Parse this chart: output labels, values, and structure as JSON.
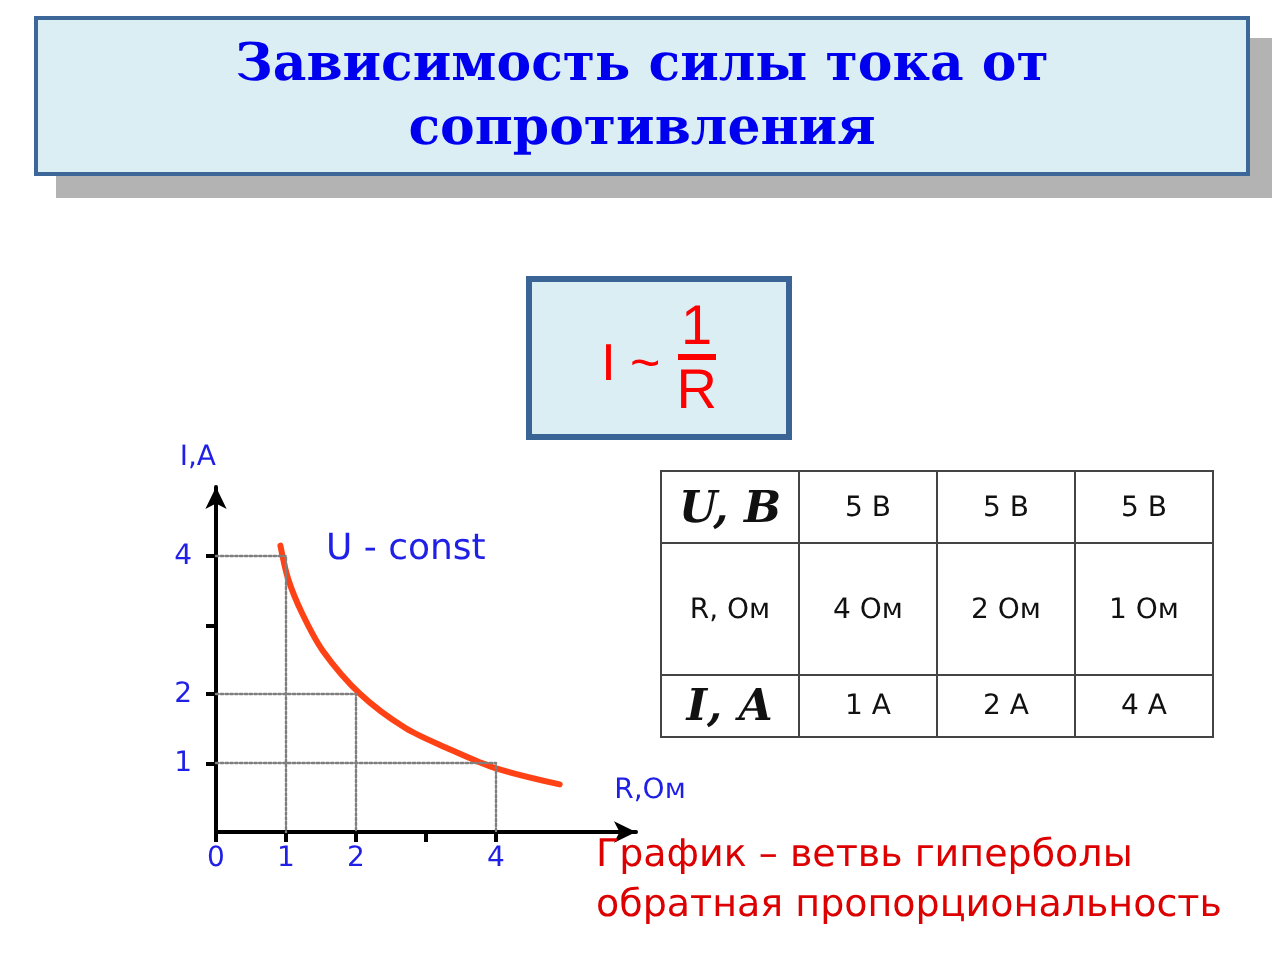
{
  "chart_data": [
    {
      "type": "line",
      "title": "Зависимость силы тока от сопротивления",
      "xlabel": "R,Ом",
      "ylabel": "I,A",
      "xlim": [
        0,
        6
      ],
      "ylim": [
        0,
        5
      ],
      "xticks": [
        {
          "value": 0,
          "label": "0"
        },
        1,
        2,
        {
          "value": 3,
          "label": null
        },
        4
      ],
      "yticks": [
        1,
        2,
        {
          "value": 3,
          "label": null
        },
        4
      ],
      "marker": "none",
      "series": [
        {
          "color": "#ff4216",
          "x": [
            0.92,
            1.03,
            1.23,
            1.53,
            2.06,
            2.7,
            3.29,
            3.98,
            4.91
          ],
          "values": [
            4.15,
            3.67,
            3.17,
            2.62,
            2.0,
            1.51,
            1.22,
            0.93,
            0.69
          ]
        },
        {
          "color": "#7f7f7f",
          "line_style": "dotted",
          "x": [
            0,
            1,
            1
          ],
          "values": [
            4,
            4,
            0
          ]
        },
        {
          "color": "#7f7f7f",
          "line_style": "dotted",
          "x": [
            0,
            2,
            2
          ],
          "values": [
            2,
            2,
            0
          ]
        },
        {
          "color": "#7f7f7f",
          "line_style": "dotted",
          "x": [
            0,
            4,
            4
          ],
          "values": [
            1,
            1,
            0
          ]
        }
      ],
      "annotations": [
        "U - const",
        "График – ветвь гиперболы",
        "обратная пропорциональность"
      ]
    },
    {
      "type": "other",
      "annotations": [
        "I ~",
        "1",
        "R"
      ]
    },
    {
      "type": "other",
      "y_categories": [
        "U, В",
        "R, Ом",
        "I, А"
      ],
      "cell_labels": [
        [
          "5 В",
          "5 В",
          "5 В"
        ],
        [
          "4 Ом",
          "2 Ом",
          "1 Ом"
        ],
        [
          "1 А",
          "2 А",
          "4 А"
        ]
      ]
    }
  ]
}
